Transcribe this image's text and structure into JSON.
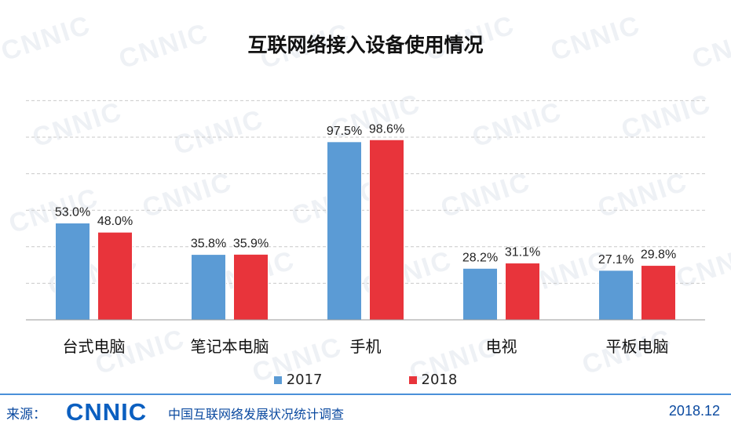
{
  "chart_data": {
    "type": "bar",
    "title": "互联网络接入设备使用情况",
    "categories": [
      "台式电脑",
      "笔记本电脑",
      "手机",
      "电视",
      "平板电脑"
    ],
    "series": [
      {
        "name": "2017",
        "color": "#5b9bd5",
        "values": [
          53.0,
          35.8,
          97.5,
          28.2,
          27.1
        ]
      },
      {
        "name": "2018",
        "color": "#e8343b",
        "values": [
          48.0,
          35.9,
          98.6,
          31.1,
          29.8
        ]
      }
    ],
    "data_labels": [
      [
        "53.0%",
        "35.8%",
        "97.5%",
        "28.2%",
        "27.1%"
      ],
      [
        "48.0%",
        "35.9%",
        "98.6%",
        "31.1%",
        "29.8%"
      ]
    ],
    "ylim": [
      0,
      120
    ],
    "grid": true,
    "grid_style": "dashed",
    "legend_position": "bottom"
  },
  "footer": {
    "source_label": "来源：",
    "logo_text": "CNNIC",
    "org_name": "中国互联网络发展状况统计调查",
    "date": "2018.12"
  },
  "watermark_text": "CNNIC"
}
